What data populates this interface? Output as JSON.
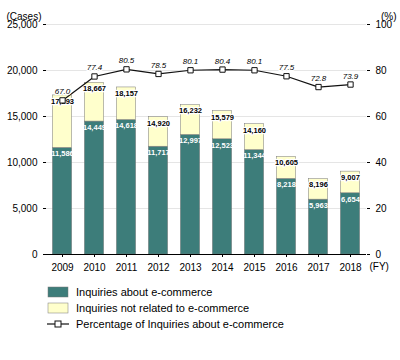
{
  "chart_data": {
    "type": "bar",
    "stacked": true,
    "grid": true,
    "legend": "bottom",
    "xlabel": "(FY)",
    "ylabel": "(Cases)",
    "y2label": "(%)",
    "categories": [
      2009,
      2010,
      2011,
      2012,
      2013,
      2014,
      2015,
      2016,
      2017,
      2018
    ],
    "series": [
      {
        "name": "Inquiries about e-commerce",
        "color": "#3d7d7a",
        "type": "bar",
        "values": [
          11586,
          14449,
          14618,
          11717,
          12997,
          12523,
          11344,
          8218,
          5963,
          6654
        ],
        "data_labels": true,
        "value_labels": [
          "11,586",
          "14,449",
          "14,618",
          "11,717",
          "12,997",
          "12,523",
          "11,344",
          "8,218",
          "5,963",
          "6,654"
        ]
      },
      {
        "name": "Inquiries not related to e-commerce",
        "color": "#ffffcc",
        "type": "bar",
        "values": [
          5707,
          4218,
          3539,
          3203,
          3235,
          3056,
          2816,
          2387,
          2233,
          2353
        ]
      },
      {
        "name": "Percentage of Inquiries about e-commerce",
        "color": "#111111",
        "type": "line",
        "axis": "y2",
        "marker": "square",
        "data_labels": true,
        "values": [
          67.0,
          77.4,
          80.5,
          78.5,
          80.1,
          80.4,
          80.1,
          77.5,
          72.8,
          73.9
        ],
        "value_labels": [
          "67.0",
          "77.4",
          "80.5",
          "78.5",
          "80.1",
          "80.4",
          "80.1",
          "77.5",
          "72.8",
          "73.9"
        ]
      }
    ],
    "totals": [
      17293,
      18667,
      18157,
      14920,
      16232,
      15579,
      14160,
      10605,
      8196,
      9007
    ],
    "total_labels": [
      "17,293",
      "18,667",
      "18,157",
      "14,920",
      "16,232",
      "15,579",
      "14,160",
      "10,605",
      "8,196",
      "9,007"
    ],
    "ylim": [
      0,
      25000
    ],
    "yticks": [
      0,
      {
        "value": 5000,
        "label": "5,000"
      },
      {
        "value": 10000,
        "label": "10,000"
      },
      {
        "value": 15000,
        "label": "15,000"
      },
      {
        "value": 20000,
        "label": "20,000"
      },
      {
        "value": 25000,
        "label": "25,000"
      }
    ],
    "y2lim": [
      0,
      100
    ],
    "y2ticks": [
      0,
      20,
      40,
      60,
      80,
      100
    ]
  }
}
